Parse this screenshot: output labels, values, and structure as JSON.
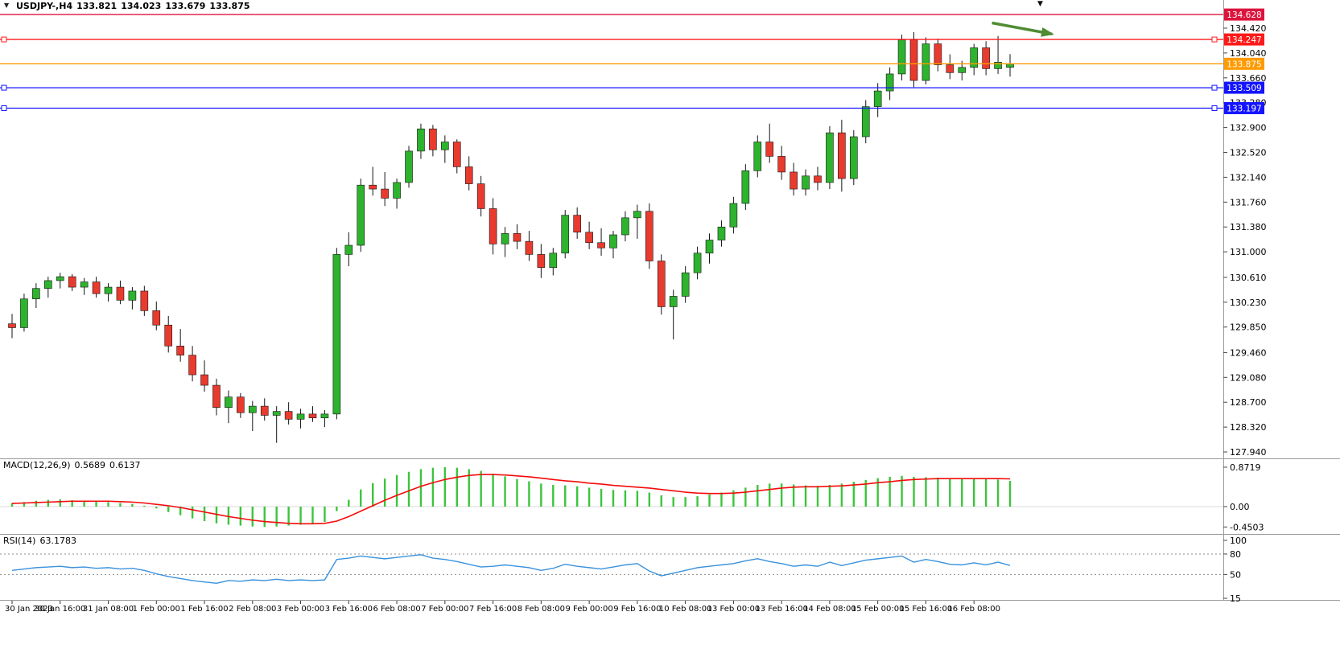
{
  "window": {
    "background": "#ffffff"
  },
  "quote": {
    "symbol_period": "USDJPY-,H4",
    "open": "133.821",
    "high": "134.023",
    "low": "133.679",
    "close": "133.875"
  },
  "icons": {
    "symbol_dropdown": "▼",
    "chart_shift_marker": "▼"
  },
  "colors": {
    "bull": "#2db32d",
    "bear": "#e93a2e",
    "candle_border": "#151515",
    "wick": "#151515",
    "separator": "#9b9b9b",
    "axis_text": "#000000",
    "macd_hist": "#3cc43c",
    "macd_signal": "#f40b0b",
    "rsi_line": "#3a92dd",
    "rsi_level_dash": "#8c8c8c",
    "arrow": "#4f8c33",
    "badge_text": "#ffffff",
    "crimson_line": "#dc143c",
    "red_line": "#ff1a1a",
    "orange_line": "#ff9a00",
    "blue_line": "#1414ff"
  },
  "chart_data": [
    {
      "type": "candlestick",
      "symbol": "USDJPY-",
      "timeframe": "H4",
      "ylim": [
        127.84,
        134.85
      ],
      "y_ticks": [
        "134.420",
        "134.040",
        "133.660",
        "133.280",
        "132.900",
        "132.520",
        "132.140",
        "131.760",
        "131.380",
        "131.000",
        "130.610",
        "130.230",
        "129.850",
        "129.460",
        "129.080",
        "128.700",
        "128.320",
        "127.940"
      ],
      "x_labels": [
        "30 Jan 2023",
        "30 Jan 16:00",
        "31 Jan 08:00",
        "1 Feb 00:00",
        "1 Feb 16:00",
        "2 Feb 08:00",
        "3 Feb 00:00",
        "3 Feb 16:00",
        "6 Feb 08:00",
        "7 Feb 00:00",
        "7 Feb 16:00",
        "8 Feb 08:00",
        "9 Feb 00:00",
        "9 Feb 16:00",
        "10 Feb 08:00",
        "13 Feb 00:00",
        "13 Feb 16:00",
        "14 Feb 08:00",
        "15 Feb 00:00",
        "15 Feb 16:00",
        "16 Feb 08:00"
      ],
      "label_every": 4,
      "candles": [
        [
          129.9,
          130.05,
          129.68,
          129.84
        ],
        [
          129.84,
          130.36,
          129.78,
          130.28
        ],
        [
          130.28,
          130.52,
          130.14,
          130.44
        ],
        [
          130.44,
          130.62,
          130.3,
          130.56
        ],
        [
          130.56,
          130.68,
          130.44,
          130.62
        ],
        [
          130.62,
          130.66,
          130.4,
          130.46
        ],
        [
          130.46,
          130.6,
          130.34,
          130.54
        ],
        [
          130.54,
          130.62,
          130.3,
          130.36
        ],
        [
          130.36,
          130.52,
          130.24,
          130.46
        ],
        [
          130.46,
          130.56,
          130.2,
          130.26
        ],
        [
          130.26,
          130.46,
          130.12,
          130.4
        ],
        [
          130.4,
          130.48,
          130.02,
          130.1
        ],
        [
          130.1,
          130.24,
          129.8,
          129.88
        ],
        [
          129.88,
          130.02,
          129.46,
          129.56
        ],
        [
          129.56,
          129.82,
          129.32,
          129.42
        ],
        [
          129.42,
          129.56,
          129.02,
          129.12
        ],
        [
          129.12,
          129.34,
          128.86,
          128.96
        ],
        [
          128.96,
          129.06,
          128.5,
          128.62
        ],
        [
          128.62,
          128.88,
          128.38,
          128.78
        ],
        [
          128.78,
          128.84,
          128.46,
          128.54
        ],
        [
          128.54,
          128.72,
          128.26,
          128.64
        ],
        [
          128.64,
          128.76,
          128.42,
          128.5
        ],
        [
          128.5,
          128.64,
          128.08,
          128.56
        ],
        [
          128.56,
          128.7,
          128.36,
          128.44
        ],
        [
          128.44,
          128.6,
          128.3,
          128.52
        ],
        [
          128.52,
          128.64,
          128.4,
          128.46
        ],
        [
          128.46,
          128.58,
          128.32,
          128.52
        ],
        [
          128.52,
          131.06,
          128.44,
          130.96
        ],
        [
          130.96,
          131.3,
          130.78,
          131.1
        ],
        [
          131.1,
          132.12,
          131.0,
          132.02
        ],
        [
          132.02,
          132.3,
          131.86,
          131.96
        ],
        [
          131.96,
          132.22,
          131.7,
          131.82
        ],
        [
          131.82,
          132.12,
          131.66,
          132.06
        ],
        [
          132.06,
          132.62,
          131.98,
          132.54
        ],
        [
          132.54,
          132.96,
          132.42,
          132.88
        ],
        [
          132.88,
          132.94,
          132.46,
          132.56
        ],
        [
          132.56,
          132.78,
          132.36,
          132.68
        ],
        [
          132.68,
          132.72,
          132.2,
          132.3
        ],
        [
          132.3,
          132.46,
          131.94,
          132.04
        ],
        [
          132.04,
          132.16,
          131.54,
          131.66
        ],
        [
          131.66,
          131.82,
          130.96,
          131.12
        ],
        [
          131.12,
          131.38,
          130.92,
          131.28
        ],
        [
          131.28,
          131.42,
          131.04,
          131.16
        ],
        [
          131.16,
          131.32,
          130.86,
          130.96
        ],
        [
          130.96,
          131.12,
          130.6,
          130.76
        ],
        [
          130.76,
          131.06,
          130.64,
          130.98
        ],
        [
          130.98,
          131.64,
          130.9,
          131.56
        ],
        [
          131.56,
          131.68,
          131.2,
          131.3
        ],
        [
          131.3,
          131.46,
          131.04,
          131.14
        ],
        [
          131.14,
          131.36,
          130.94,
          131.06
        ],
        [
          131.06,
          131.32,
          130.9,
          131.26
        ],
        [
          131.26,
          131.62,
          131.16,
          131.52
        ],
        [
          131.52,
          131.72,
          131.2,
          131.62
        ],
        [
          131.62,
          131.74,
          130.74,
          130.86
        ],
        [
          130.86,
          130.96,
          130.04,
          130.16
        ],
        [
          130.16,
          130.42,
          129.66,
          130.32
        ],
        [
          130.32,
          130.78,
          130.22,
          130.68
        ],
        [
          130.68,
          131.08,
          130.58,
          130.98
        ],
        [
          130.98,
          131.28,
          130.82,
          131.18
        ],
        [
          131.18,
          131.48,
          131.08,
          131.38
        ],
        [
          131.38,
          131.84,
          131.28,
          131.74
        ],
        [
          131.74,
          132.34,
          131.64,
          132.24
        ],
        [
          132.24,
          132.78,
          132.14,
          132.68
        ],
        [
          132.68,
          132.96,
          132.36,
          132.46
        ],
        [
          132.46,
          132.62,
          132.1,
          132.22
        ],
        [
          132.22,
          132.36,
          131.86,
          131.96
        ],
        [
          131.96,
          132.26,
          131.86,
          132.16
        ],
        [
          132.16,
          132.3,
          131.94,
          132.06
        ],
        [
          132.06,
          132.92,
          131.96,
          132.82
        ],
        [
          132.82,
          133.02,
          131.92,
          132.12
        ],
        [
          132.12,
          132.86,
          132.02,
          132.76
        ],
        [
          132.76,
          133.32,
          132.66,
          133.22
        ],
        [
          133.22,
          133.58,
          133.06,
          133.46
        ],
        [
          133.46,
          133.82,
          133.32,
          133.72
        ],
        [
          133.72,
          134.32,
          133.62,
          134.24
        ],
        [
          134.24,
          134.36,
          133.52,
          133.62
        ],
        [
          133.62,
          134.28,
          133.56,
          134.18
        ],
        [
          134.18,
          134.26,
          133.76,
          133.86
        ],
        [
          133.86,
          134.02,
          133.64,
          133.74
        ],
        [
          133.74,
          133.92,
          133.62,
          133.82
        ],
        [
          133.82,
          134.18,
          133.7,
          134.12
        ],
        [
          134.12,
          134.22,
          133.7,
          133.8
        ],
        [
          133.8,
          134.3,
          133.72,
          133.9
        ],
        [
          133.821,
          134.023,
          133.679,
          133.875
        ]
      ],
      "hlines": [
        {
          "price": 134.628,
          "label": "134.628",
          "color": "#dc143c",
          "handles": false
        },
        {
          "price": 134.247,
          "label": "134.247",
          "color": "#ff1a1a",
          "handles": true
        },
        {
          "price": 133.875,
          "label": "133.875",
          "color": "#ff9a00",
          "handles": false
        },
        {
          "price": 133.509,
          "label": "133.509",
          "color": "#1414ff",
          "handles": true
        },
        {
          "price": 133.197,
          "label": "133.197",
          "color": "#1414ff",
          "handles": true
        }
      ],
      "annotations": [
        {
          "type": "arrow",
          "from": {
            "index": 81.5,
            "price": 134.5
          },
          "to": {
            "index": 86.5,
            "price": 134.33
          },
          "color": "#4f8c33"
        }
      ]
    },
    {
      "type": "bar",
      "name": "MACD(12,26,9)",
      "params": [
        12,
        26,
        9
      ],
      "value_main": "0.5689",
      "value_signal": "0.6137",
      "y_ticks": [
        "0.8719",
        "0.00",
        "-0.4503"
      ],
      "histogram": [
        0.08,
        0.1,
        0.13,
        0.15,
        0.16,
        0.14,
        0.13,
        0.11,
        0.1,
        0.08,
        0.06,
        0.02,
        -0.04,
        -0.12,
        -0.19,
        -0.26,
        -0.32,
        -0.37,
        -0.4,
        -0.42,
        -0.44,
        -0.45,
        -0.44,
        -0.42,
        -0.4,
        -0.37,
        -0.34,
        -0.1,
        0.15,
        0.38,
        0.52,
        0.62,
        0.7,
        0.77,
        0.83,
        0.86,
        0.872,
        0.86,
        0.83,
        0.79,
        0.73,
        0.67,
        0.61,
        0.56,
        0.51,
        0.48,
        0.47,
        0.45,
        0.42,
        0.39,
        0.37,
        0.36,
        0.35,
        0.31,
        0.25,
        0.21,
        0.21,
        0.23,
        0.27,
        0.31,
        0.36,
        0.42,
        0.48,
        0.51,
        0.51,
        0.49,
        0.47,
        0.46,
        0.48,
        0.51,
        0.55,
        0.59,
        0.63,
        0.66,
        0.68,
        0.66,
        0.65,
        0.64,
        0.63,
        0.62,
        0.62,
        0.61,
        0.6,
        0.5689
      ],
      "signal": [
        0.07,
        0.08,
        0.09,
        0.1,
        0.11,
        0.12,
        0.12,
        0.12,
        0.12,
        0.11,
        0.1,
        0.08,
        0.05,
        0.02,
        -0.02,
        -0.07,
        -0.12,
        -0.17,
        -0.22,
        -0.26,
        -0.3,
        -0.33,
        -0.35,
        -0.37,
        -0.38,
        -0.38,
        -0.37,
        -0.32,
        -0.22,
        -0.1,
        0.02,
        0.14,
        0.25,
        0.35,
        0.45,
        0.53,
        0.6,
        0.65,
        0.69,
        0.71,
        0.71,
        0.7,
        0.68,
        0.66,
        0.63,
        0.6,
        0.57,
        0.55,
        0.52,
        0.5,
        0.47,
        0.45,
        0.43,
        0.41,
        0.38,
        0.35,
        0.32,
        0.3,
        0.29,
        0.29,
        0.3,
        0.32,
        0.35,
        0.38,
        0.41,
        0.43,
        0.44,
        0.44,
        0.45,
        0.46,
        0.48,
        0.5,
        0.53,
        0.55,
        0.58,
        0.6,
        0.61,
        0.62,
        0.62,
        0.62,
        0.62,
        0.62,
        0.62,
        0.6137
      ]
    },
    {
      "type": "line",
      "name": "RSI(14)",
      "period": 14,
      "value": "63.1783",
      "y_ticks": [
        "100",
        "80",
        "50",
        "15"
      ],
      "levels": [
        80,
        50
      ],
      "values": [
        56,
        58,
        60,
        61,
        62,
        60,
        61,
        59,
        60,
        58,
        59,
        56,
        51,
        47,
        44,
        41,
        39,
        37,
        41,
        40,
        42,
        41,
        43,
        41,
        42,
        41,
        42,
        72,
        74,
        77,
        75,
        73,
        75,
        77,
        79,
        74,
        72,
        69,
        65,
        61,
        62,
        64,
        62,
        60,
        56,
        59,
        65,
        62,
        60,
        58,
        61,
        64,
        66,
        55,
        48,
        52,
        56,
        60,
        62,
        64,
        66,
        70,
        73,
        69,
        66,
        62,
        64,
        62,
        68,
        63,
        67,
        71,
        73,
        75,
        77,
        68,
        72,
        69,
        65,
        64,
        67,
        64,
        68,
        63.18
      ]
    }
  ]
}
